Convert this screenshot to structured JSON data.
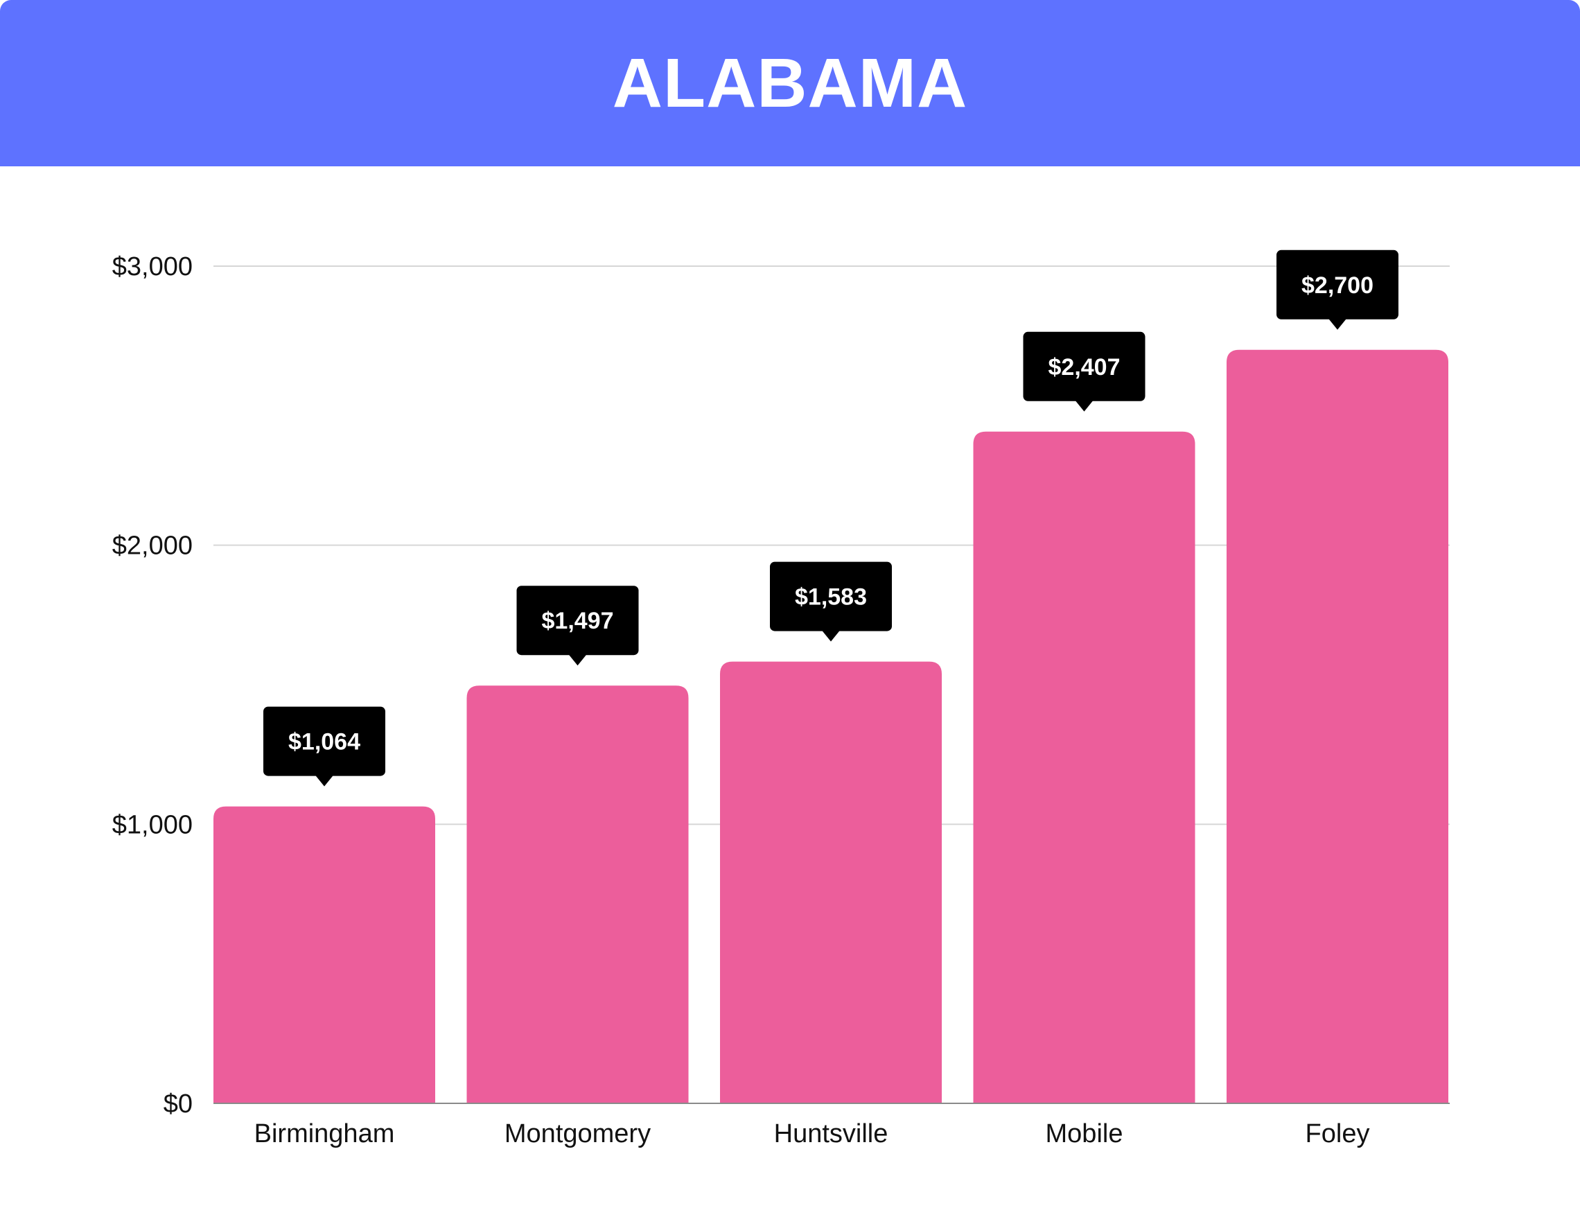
{
  "header": {
    "title": "ALABAMA"
  },
  "colors": {
    "header_bg": "#5e72ff",
    "bar": "#ec5e9b",
    "label_bg": "#000000",
    "gridline": "#d6d6d6",
    "axis": "#8a8a8a"
  },
  "chart_data": {
    "type": "bar",
    "title": "",
    "xlabel": "",
    "ylabel": "",
    "categories": [
      "Birmingham",
      "Montgomery",
      "Huntsville",
      "Mobile",
      "Foley"
    ],
    "values": [
      1064,
      1497,
      1583,
      2407,
      2700
    ],
    "value_labels": [
      "$1,064",
      "$1,497",
      "$1,583",
      "$2,407",
      "$2,700"
    ],
    "ylim": [
      0,
      3000
    ],
    "yticks": [
      0,
      1000,
      2000,
      3000
    ],
    "ytick_labels": [
      "$0",
      "$1,000",
      "$2,000",
      "$3,000"
    ],
    "grid": true,
    "legend": "none"
  }
}
